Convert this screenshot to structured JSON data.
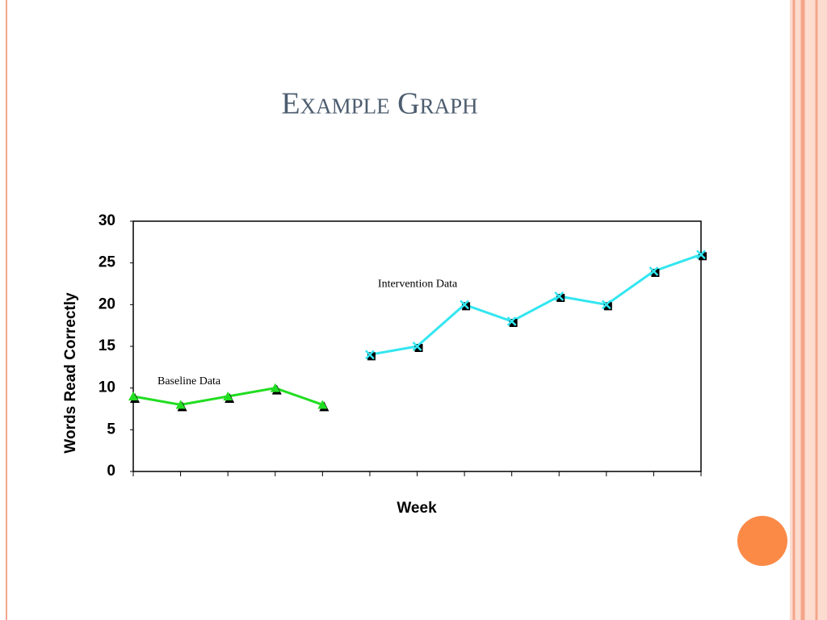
{
  "chart_data": {
    "type": "line",
    "title": "Example Graph",
    "xlabel": "Week",
    "ylabel": "Words Read Correctly",
    "categories": [
      null,
      null,
      null,
      null,
      null,
      null,
      null,
      null,
      null,
      null,
      null,
      null,
      null
    ],
    "series": [
      {
        "name": "Baseline Data",
        "color": "#22dd22",
        "values": [
          9,
          8,
          9,
          10,
          8,
          null,
          null,
          null,
          null,
          null,
          null,
          null,
          null
        ]
      },
      {
        "name": "Intervention Data",
        "color": "#33e6f0",
        "values": [
          null,
          null,
          null,
          null,
          null,
          14,
          15,
          20,
          18,
          21,
          20,
          24,
          26
        ]
      }
    ],
    "ylim": [
      0,
      30
    ],
    "yticks": [
      0,
      5,
      10,
      15,
      20,
      25,
      30
    ],
    "grid": false
  }
}
